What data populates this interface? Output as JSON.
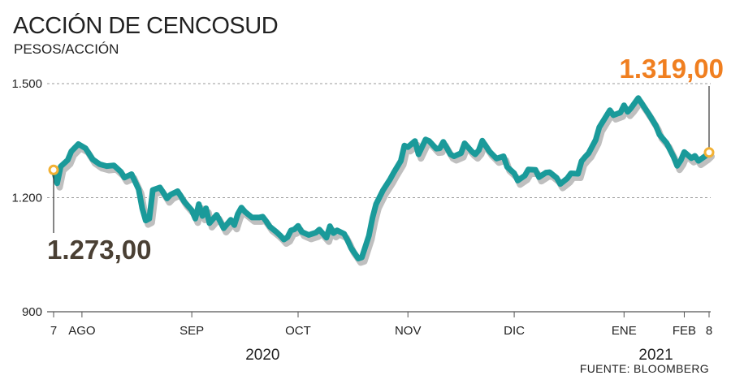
{
  "header": {
    "title": "ACCIÓN DE CENCOSUD",
    "subtitle": "PESOS/ACCIÓN"
  },
  "source": "FUENTE: BLOOMBERG",
  "chart_data": {
    "type": "line",
    "title": "ACCIÓN DE CENCOSUD",
    "ylabel": "PESOS/ACCIÓN",
    "ylim": [
      900,
      1500
    ],
    "yticks": [
      {
        "value": 1500,
        "label": "1.500"
      },
      {
        "value": 1200,
        "label": "1.200"
      },
      {
        "value": 900,
        "label": "900"
      }
    ],
    "grid": "horizontal dashed",
    "xlim": [
      "2020-08-07",
      "2021-02-08"
    ],
    "xticks": [
      {
        "date": "2020-08-07",
        "label": "7"
      },
      {
        "date": "2020-08-15",
        "label": "AGO"
      },
      {
        "date": "2020-09-15",
        "label": "SEP"
      },
      {
        "date": "2020-10-15",
        "label": "OCT"
      },
      {
        "date": "2020-11-15",
        "label": "NOV"
      },
      {
        "date": "2020-12-15",
        "label": "DIC"
      },
      {
        "date": "2021-01-15",
        "label": "ENE"
      },
      {
        "date": "2021-02-01",
        "label": "FEB"
      },
      {
        "date": "2021-02-08",
        "label": "8"
      }
    ],
    "year_labels": [
      {
        "date": "2020-10-05",
        "label": "2020"
      },
      {
        "date": "2021-01-24",
        "label": "2021"
      }
    ],
    "series": [
      {
        "color": "#1a9a9a",
        "shadow_color": "#bfbfbf",
        "points": [
          [
            "2020-08-07",
            1273
          ],
          [
            "2020-08-08",
            1238
          ],
          [
            "2020-08-09",
            1282
          ],
          [
            "2020-08-11",
            1299
          ],
          [
            "2020-08-12",
            1322
          ],
          [
            "2020-08-14",
            1341
          ],
          [
            "2020-08-16",
            1330
          ],
          [
            "2020-08-18",
            1301
          ],
          [
            "2020-08-20",
            1288
          ],
          [
            "2020-08-22",
            1283
          ],
          [
            "2020-08-24",
            1285
          ],
          [
            "2020-08-26",
            1268
          ],
          [
            "2020-08-27",
            1253
          ],
          [
            "2020-08-29",
            1262
          ],
          [
            "2020-08-31",
            1222
          ],
          [
            "2020-09-01",
            1172
          ],
          [
            "2020-09-02",
            1140
          ],
          [
            "2020-09-03",
            1145
          ],
          [
            "2020-09-04",
            1220
          ],
          [
            "2020-09-06",
            1227
          ],
          [
            "2020-09-08",
            1198
          ],
          [
            "2020-09-09",
            1208
          ],
          [
            "2020-09-11",
            1217
          ],
          [
            "2020-09-13",
            1188
          ],
          [
            "2020-09-15",
            1167
          ],
          [
            "2020-09-16",
            1145
          ],
          [
            "2020-09-17",
            1183
          ],
          [
            "2020-09-18",
            1152
          ],
          [
            "2020-09-19",
            1172
          ],
          [
            "2020-09-20",
            1133
          ],
          [
            "2020-09-22",
            1155
          ],
          [
            "2020-09-23",
            1138
          ],
          [
            "2020-09-24",
            1120
          ],
          [
            "2020-09-26",
            1142
          ],
          [
            "2020-09-27",
            1128
          ],
          [
            "2020-09-28",
            1157
          ],
          [
            "2020-09-29",
            1174
          ],
          [
            "2020-09-30",
            1163
          ],
          [
            "2020-10-02",
            1148
          ],
          [
            "2020-10-04",
            1148
          ],
          [
            "2020-10-05",
            1150
          ],
          [
            "2020-10-06",
            1138
          ],
          [
            "2020-10-07",
            1124
          ],
          [
            "2020-10-09",
            1109
          ],
          [
            "2020-10-10",
            1100
          ],
          [
            "2020-10-11",
            1090
          ],
          [
            "2020-10-12",
            1096
          ],
          [
            "2020-10-13",
            1114
          ],
          [
            "2020-10-14",
            1117
          ],
          [
            "2020-10-15",
            1126
          ],
          [
            "2020-10-16",
            1110
          ],
          [
            "2020-10-18",
            1102
          ],
          [
            "2020-10-20",
            1108
          ],
          [
            "2020-10-21",
            1116
          ],
          [
            "2020-10-23",
            1095
          ],
          [
            "2020-10-24",
            1125
          ],
          [
            "2020-10-25",
            1107
          ],
          [
            "2020-10-26",
            1114
          ],
          [
            "2020-10-28",
            1105
          ],
          [
            "2020-10-29",
            1087
          ],
          [
            "2020-10-30",
            1067
          ],
          [
            "2020-11-01",
            1040
          ],
          [
            "2020-11-02",
            1043
          ],
          [
            "2020-11-04",
            1100
          ],
          [
            "2020-11-05",
            1147
          ],
          [
            "2020-11-06",
            1183
          ],
          [
            "2020-11-08",
            1220
          ],
          [
            "2020-11-10",
            1249
          ],
          [
            "2020-11-11",
            1266
          ],
          [
            "2020-11-13",
            1297
          ],
          [
            "2020-11-14",
            1337
          ],
          [
            "2020-11-15",
            1333
          ],
          [
            "2020-11-17",
            1349
          ],
          [
            "2020-11-18",
            1314
          ],
          [
            "2020-11-20",
            1353
          ],
          [
            "2020-11-21",
            1349
          ],
          [
            "2020-11-23",
            1329
          ],
          [
            "2020-11-24",
            1330
          ],
          [
            "2020-11-25",
            1347
          ],
          [
            "2020-11-27",
            1314
          ],
          [
            "2020-11-28",
            1309
          ],
          [
            "2020-11-30",
            1317
          ],
          [
            "2020-12-01",
            1343
          ],
          [
            "2020-12-03",
            1322
          ],
          [
            "2020-12-04",
            1314
          ],
          [
            "2020-12-05",
            1325
          ],
          [
            "2020-12-06",
            1350
          ],
          [
            "2020-12-08",
            1322
          ],
          [
            "2020-12-10",
            1303
          ],
          [
            "2020-12-12",
            1309
          ],
          [
            "2020-12-13",
            1281
          ],
          [
            "2020-12-15",
            1264
          ],
          [
            "2020-12-16",
            1245
          ],
          [
            "2020-12-18",
            1258
          ],
          [
            "2020-12-19",
            1274
          ],
          [
            "2020-12-21",
            1273
          ],
          [
            "2020-12-22",
            1254
          ],
          [
            "2020-12-24",
            1266
          ],
          [
            "2020-12-25",
            1267
          ],
          [
            "2020-12-27",
            1252
          ],
          [
            "2020-12-28",
            1236
          ],
          [
            "2020-12-30",
            1251
          ],
          [
            "2020-12-31",
            1264
          ],
          [
            "2021-01-02",
            1263
          ],
          [
            "2021-01-03",
            1296
          ],
          [
            "2021-01-04",
            1307
          ],
          [
            "2021-01-05",
            1317
          ],
          [
            "2021-01-07",
            1352
          ],
          [
            "2021-01-08",
            1385
          ],
          [
            "2021-01-10",
            1415
          ],
          [
            "2021-01-11",
            1430
          ],
          [
            "2021-01-12",
            1417
          ],
          [
            "2021-01-14",
            1424
          ],
          [
            "2021-01-15",
            1443
          ],
          [
            "2021-01-16",
            1426
          ],
          [
            "2021-01-17",
            1436
          ],
          [
            "2021-01-19",
            1462
          ],
          [
            "2021-01-20",
            1448
          ],
          [
            "2021-01-22",
            1420
          ],
          [
            "2021-01-24",
            1389
          ],
          [
            "2021-01-25",
            1366
          ],
          [
            "2021-01-27",
            1344
          ],
          [
            "2021-01-29",
            1307
          ],
          [
            "2021-01-30",
            1284
          ],
          [
            "2021-01-31",
            1298
          ],
          [
            "2021-02-01",
            1320
          ],
          [
            "2021-02-03",
            1304
          ],
          [
            "2021-02-04",
            1310
          ],
          [
            "2021-02-05",
            1297
          ],
          [
            "2021-02-07",
            1310
          ],
          [
            "2021-02-08",
            1319
          ]
        ]
      }
    ],
    "annotations": [
      {
        "date": "2020-08-07",
        "value": 1273,
        "label": "1.273,00",
        "color": "#4a4034",
        "marker_color": "#f2b134"
      },
      {
        "date": "2021-02-08",
        "value": 1319,
        "label": "1.319,00",
        "color": "#f07f20",
        "marker_color": "#f2b134"
      }
    ]
  }
}
